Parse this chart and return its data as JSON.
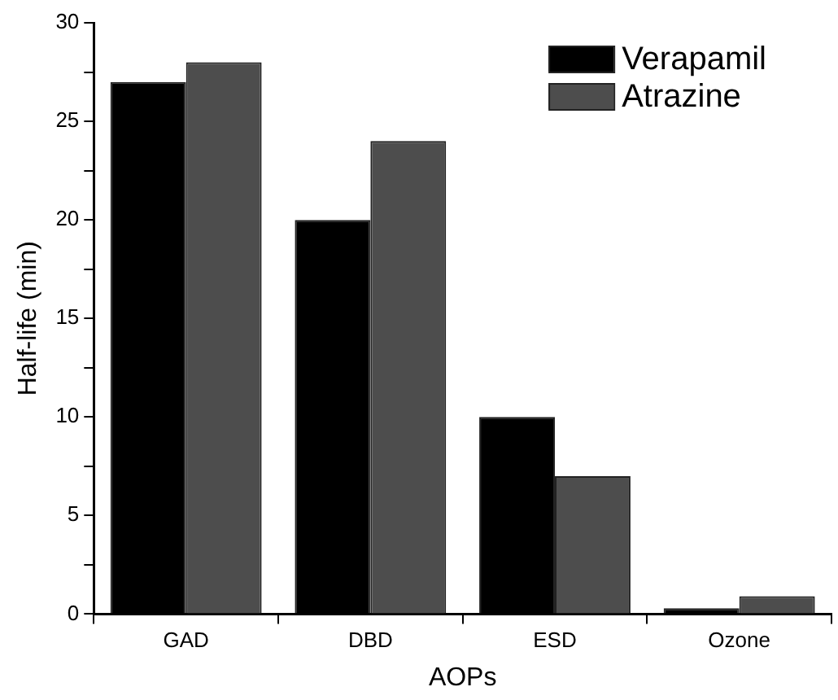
{
  "chart_data": {
    "type": "bar",
    "xlabel": "AOPs",
    "ylabel": "Half-life (min)",
    "categories": [
      "GAD",
      "DBD",
      "ESD",
      "Ozone"
    ],
    "series": [
      {
        "name": "Verapamil",
        "color": "#000000",
        "values": [
          27,
          20,
          10,
          0.3
        ]
      },
      {
        "name": "Atrazine",
        "color": "#4d4d4d",
        "values": [
          28,
          24,
          7,
          0.9
        ]
      }
    ],
    "ylim": [
      0,
      30
    ],
    "yticks": [
      0,
      {
        "value": 2.5,
        "label": null
      },
      5,
      {
        "value": 7.5,
        "label": null
      },
      10,
      {
        "value": 12.5,
        "label": null
      },
      15,
      {
        "value": 17.5,
        "label": null
      },
      20,
      {
        "value": 22.5,
        "label": null
      },
      25,
      {
        "value": 27.5,
        "label": null
      },
      30
    ],
    "grid": false,
    "legend": "top right"
  }
}
